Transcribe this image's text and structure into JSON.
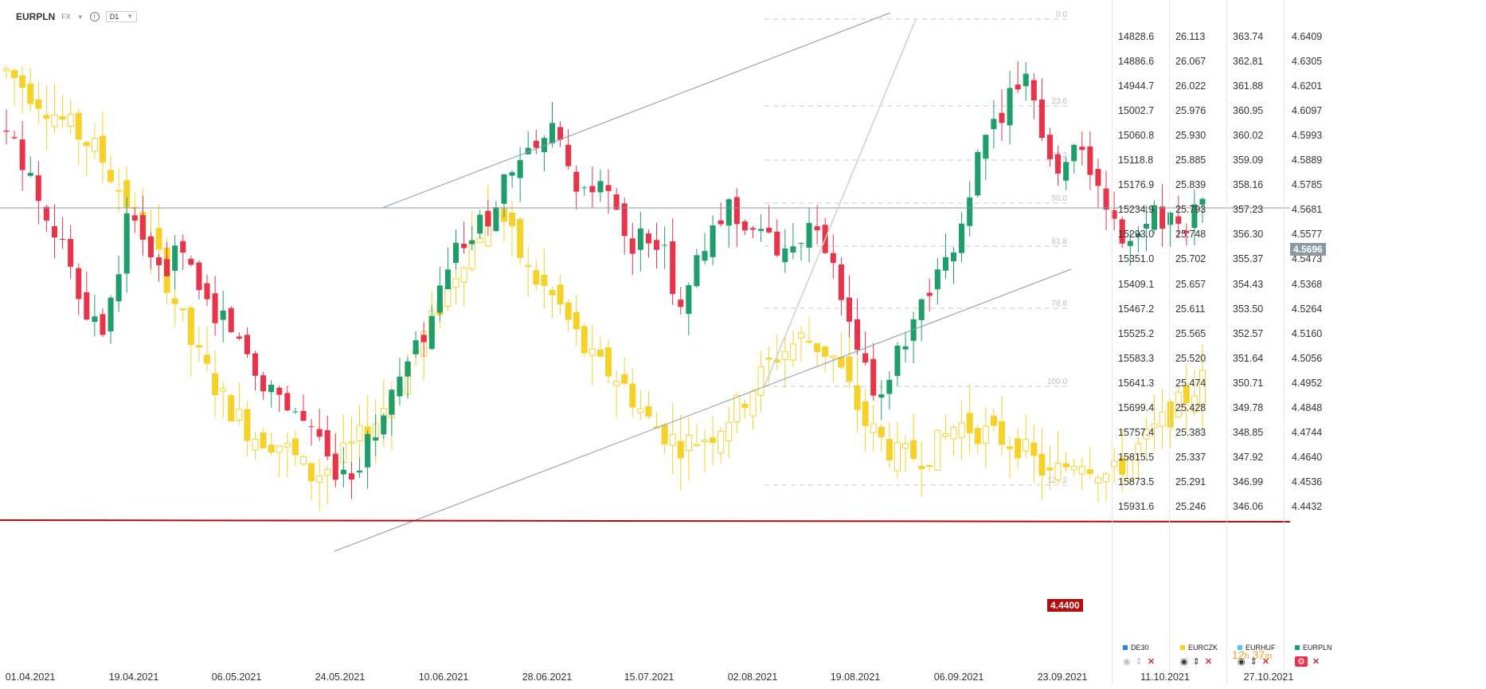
{
  "toolbar": {
    "symbol": "EURPLN",
    "market": "FX",
    "timeframe": "D1",
    "info_icon": "info-icon",
    "dropdown_icon": "chevron-down-icon"
  },
  "colors": {
    "up": "#1e9e6a",
    "down": "#e8334a",
    "compare": "#f6d229",
    "support": "#b40c0c",
    "channel": "#8a9aa4"
  },
  "price_columns": [
    {
      "name": "DE30",
      "values": [
        "14828.6",
        "14886.6",
        "14944.7",
        "15002.7",
        "15060.8",
        "15118.8",
        "15176.9",
        "15234.9",
        "15293.0",
        "15351.0",
        "15409.1",
        "15467.2",
        "15525.2",
        "15583.3",
        "15641.3",
        "15699.4",
        "15757.4",
        "15815.5",
        "15873.5",
        "15931.6"
      ]
    },
    {
      "name": "EURCZK",
      "values": [
        "26.113",
        "26.067",
        "26.022",
        "25.976",
        "25.930",
        "25.885",
        "25.839",
        "25.793",
        "25.748",
        "25.702",
        "25.657",
        "25.611",
        "25.565",
        "25.520",
        "25.474",
        "25.428",
        "25.383",
        "25.337",
        "25.291",
        "25.246"
      ]
    },
    {
      "name": "EURHUF",
      "values": [
        "363.74",
        "362.81",
        "361.88",
        "360.95",
        "360.02",
        "359.09",
        "358.16",
        "357.23",
        "356.30",
        "355.37",
        "354.43",
        "353.50",
        "352.57",
        "351.64",
        "350.71",
        "349.78",
        "348.85",
        "347.92",
        "346.99",
        "346.06"
      ]
    },
    {
      "name": "EURPLN",
      "values": [
        "4.6409",
        "4.6305",
        "4.6201",
        "4.6097",
        "4.5993",
        "4.5889",
        "4.5785",
        "4.5681",
        "4.5577",
        "4.5473",
        "4.5368",
        "4.5264",
        "4.5160",
        "4.5056",
        "4.4952",
        "4.4848",
        "4.4744",
        "4.4640",
        "4.4536",
        "4.4432"
      ]
    }
  ],
  "current_price_tag": "4.5696",
  "support_tag": "4.4400",
  "fibonacci_levels": [
    "0.0",
    "23.6",
    "38.2",
    "50.0",
    "61.8",
    "78.6",
    "100.0",
    "127.2"
  ],
  "x_axis_labels": [
    "01.04.2021",
    "19.04.2021",
    "06.05.2021",
    "24.05.2021",
    "10.06.2021",
    "28.06.2021",
    "15.07.2021",
    "02.08.2021",
    "19.08.2021",
    "06.09.2021",
    "23.09.2021",
    "11.10.2021",
    "27.10.2021"
  ],
  "timer": {
    "hours": "12",
    "h_unit": "h",
    "minutes": "37",
    "m_unit": "m"
  },
  "legend": [
    {
      "name": "DE30",
      "color": "#1e88e5"
    },
    {
      "name": "EURCZK",
      "color": "#f6d229"
    },
    {
      "name": "EURHUF",
      "color": "#4fc3f7"
    },
    {
      "name": "EURPLN",
      "color": "#1e9e6a"
    }
  ],
  "legend_controls": {
    "eye_icon": "eye-icon",
    "arrows_icon": "up-down-arrows-icon",
    "close_icon": "close-icon",
    "settings_icon": "settings-icon"
  },
  "chart_data": {
    "type": "candlestick",
    "main_series": {
      "name": "EURPLN",
      "ylim": [
        4.4432,
        4.6409
      ],
      "current_price": 4.5696,
      "support_level": 4.44,
      "first_date": "01.04.2021",
      "last_date": "27.10.2021",
      "closes_sampled": [
        4.6,
        4.58,
        4.56,
        4.53,
        4.52,
        4.57,
        4.54,
        4.55,
        4.53,
        4.52,
        4.5,
        4.49,
        4.48,
        4.46,
        4.46,
        4.48,
        4.5,
        4.52,
        4.55,
        4.56,
        4.58,
        4.59,
        4.6,
        4.57,
        4.58,
        4.55,
        4.56,
        4.53,
        4.55,
        4.57,
        4.56,
        4.55,
        4.56,
        4.55,
        4.51,
        4.49,
        4.51,
        4.53,
        4.55,
        4.59,
        4.61,
        4.63,
        4.58,
        4.6,
        4.57,
        4.55,
        4.57,
        4.56,
        4.57
      ]
    },
    "compare_series": {
      "name": "EURCZK",
      "ylim": [
        25.246,
        26.113
      ],
      "closes_sampled": [
        26.05,
        26.0,
        25.95,
        25.9,
        25.8,
        25.7,
        25.55,
        25.45,
        25.38,
        25.36,
        25.3,
        25.34,
        25.4,
        25.5,
        25.6,
        25.72,
        25.8,
        25.68,
        25.62,
        25.52,
        25.48,
        25.4,
        25.36,
        25.38,
        25.44,
        25.52,
        25.56,
        25.52,
        25.4,
        25.34,
        25.34,
        25.4,
        25.38,
        25.36,
        25.3,
        25.34,
        25.3,
        25.36,
        25.42,
        25.48
      ]
    },
    "trendlines": [
      "upper channel",
      "lower channel",
      "support 4.4400"
    ],
    "fibonacci_levels": [
      0.0,
      23.6,
      38.2,
      50.0,
      61.8,
      78.6,
      100.0,
      127.2
    ],
    "x_tick_labels": [
      "01.04.2021",
      "19.04.2021",
      "06.05.2021",
      "24.05.2021",
      "10.06.2021",
      "28.06.2021",
      "15.07.2021",
      "02.08.2021",
      "19.08.2021",
      "06.09.2021",
      "23.09.2021",
      "11.10.2021",
      "27.10.2021"
    ],
    "grid": false
  }
}
